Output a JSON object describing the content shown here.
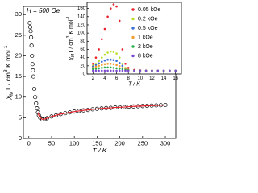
{
  "chart_data": [
    {
      "type": "scatter",
      "annotation": "H = 500 Oe",
      "xlabel": "T / K",
      "ylabel": [
        "χ",
        "M",
        "T / cm",
        "3",
        " K mol",
        "-1"
      ],
      "xlim": [
        -12,
        323
      ],
      "ylim": [
        0,
        32
      ],
      "xticks": [
        0,
        50,
        100,
        150,
        200,
        250,
        300
      ],
      "yticks": [
        0,
        5,
        10,
        15,
        20,
        25,
        30
      ],
      "series": [
        {
          "color": "#000000",
          "marker": "open-circle",
          "x": [
            2,
            3,
            4,
            5,
            6,
            7,
            8,
            9,
            10,
            12,
            14,
            16,
            18,
            20,
            22,
            25,
            30,
            35,
            40,
            50,
            60,
            70,
            80,
            90,
            100,
            110,
            120,
            130,
            140,
            150,
            160,
            170,
            180,
            190,
            200,
            210,
            220,
            230,
            240,
            250,
            260,
            270,
            280,
            290,
            300
          ],
          "values": [
            28,
            27,
            26,
            24.5,
            22.5,
            20,
            18,
            16.5,
            15,
            12,
            10,
            8.5,
            7.3,
            6.3,
            5.6,
            5.0,
            4.6,
            4.7,
            4.9,
            5.3,
            5.6,
            5.9,
            6.1,
            6.3,
            6.5,
            6.65,
            6.8,
            6.9,
            7.05,
            7.15,
            7.25,
            7.35,
            7.4,
            7.5,
            7.55,
            7.6,
            7.7,
            7.75,
            7.8,
            7.85,
            7.9,
            7.95,
            8.0,
            8.05,
            8.1
          ]
        },
        {
          "color": "#e8202a",
          "marker": "line",
          "x": [
            20,
            22,
            25,
            30,
            35,
            40,
            50,
            60,
            70,
            80,
            90,
            100,
            110,
            120,
            130,
            140,
            150,
            160,
            170,
            180,
            190,
            200,
            210,
            220,
            230,
            240,
            250,
            260,
            270,
            280,
            290,
            300
          ],
          "values": [
            6.3,
            5.6,
            5.0,
            4.6,
            4.7,
            4.9,
            5.3,
            5.6,
            5.9,
            6.1,
            6.3,
            6.5,
            6.65,
            6.8,
            6.9,
            7.05,
            7.15,
            7.25,
            7.35,
            7.4,
            7.5,
            7.55,
            7.6,
            7.7,
            7.75,
            7.8,
            7.85,
            7.9,
            7.95,
            8.0,
            8.05,
            8.1
          ]
        }
      ]
    },
    {
      "type": "scatter",
      "xlabel": "T / K",
      "ylabel": [
        "χ",
        "M",
        "T / cm",
        "3",
        " K mol",
        "-1"
      ],
      "xlim": [
        1,
        17
      ],
      "ylim": [
        0,
        175
      ],
      "xticks": [
        2,
        4,
        6,
        8,
        10,
        12,
        14,
        16
      ],
      "yticks": [
        0,
        20,
        40,
        60,
        80,
        100,
        120,
        140,
        160
      ],
      "x": [
        2,
        2.5,
        3,
        3.5,
        4,
        4.5,
        5,
        5.5,
        6,
        6.5,
        7,
        7.5,
        8,
        9,
        10,
        11,
        12,
        13,
        14,
        15,
        16
      ],
      "legend": "upper right",
      "series": [
        {
          "name": "0.05 kOe",
          "color": "#e8202a",
          "values": [
            25,
            40,
            60,
            85,
            110,
            140,
            160,
            170,
            165,
            130,
            60,
            25,
            15,
            10,
            9,
            8.5,
            8.3,
            8.2,
            8.1,
            8,
            8
          ]
        },
        {
          "name": "0.2 kOe",
          "color": "#b8e02a",
          "values": [
            20,
            25,
            32,
            40,
            47,
            52,
            55,
            54,
            50,
            40,
            25,
            15,
            10,
            8,
            8,
            8,
            8,
            8,
            8,
            8,
            8
          ]
        },
        {
          "name": "0.5 kOe",
          "color": "#3a6fd8",
          "values": [
            18,
            22,
            26,
            30,
            33,
            35,
            35,
            34,
            32,
            27,
            20,
            13,
            10,
            8,
            8,
            8,
            8,
            8,
            8,
            8,
            8
          ]
        },
        {
          "name": "1 kOe",
          "color": "#f0a030",
          "values": [
            15,
            18,
            20,
            22,
            24,
            25,
            25,
            24,
            22,
            19,
            15,
            12,
            10,
            8,
            8,
            8,
            8,
            8,
            8,
            8,
            8
          ]
        },
        {
          "name": "2 kOe",
          "color": "#2ab04a",
          "values": [
            12,
            13,
            14,
            15,
            16,
            16,
            16,
            15,
            14,
            13,
            12,
            10,
            9,
            8,
            8,
            8,
            8,
            8,
            8,
            8,
            8
          ]
        },
        {
          "name": "8 kOe",
          "color": "#7a4ad0",
          "values": [
            8,
            8,
            8,
            8,
            8,
            8,
            8,
            8,
            8,
            8,
            8,
            8,
            8,
            8,
            8,
            8,
            8,
            8,
            8,
            8,
            8
          ]
        }
      ]
    }
  ]
}
